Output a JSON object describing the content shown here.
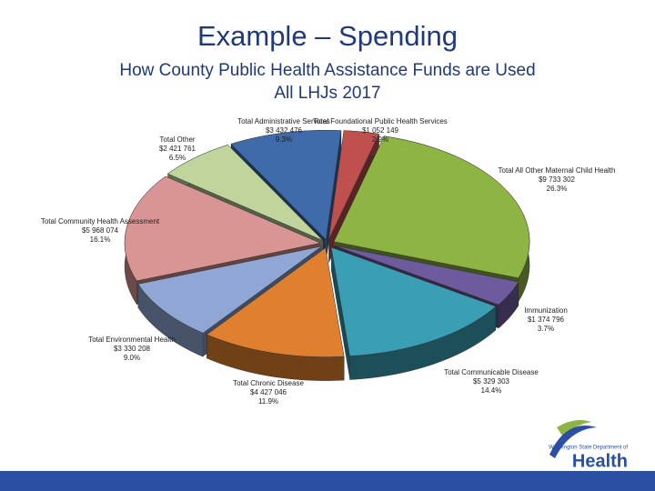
{
  "chart_data": {
    "type": "pie",
    "title": "Example – Spending",
    "subtitle": [
      "How County Public Health Assistance Funds are Used",
      "All LHJs 2017"
    ],
    "categories": [
      "Total Administrative Services",
      "Total Foundational Public Health Services",
      "Total All Other Maternal Child Health",
      "Immunization",
      "Total Communicable Disease",
      "Total Chronic Disease",
      "Total Environmental Health",
      "Total Community Health Assessment",
      "Total Other"
    ],
    "amount_labels": [
      "$3 432 476",
      "$1 052 149",
      "$9 733 302",
      "$1 374 796",
      "$5 329 303",
      "$4 427 046",
      "$3 330 208",
      "$5 968 074",
      "$2 421 761"
    ],
    "values": [
      9.3,
      2.9,
      26.3,
      3.7,
      14.4,
      11.9,
      9.0,
      16.1,
      6.5
    ],
    "value_labels": [
      "9.3%",
      "2.9%",
      "26.3%",
      "3.7%",
      "14.4%",
      "11.9%",
      "9.0%",
      "16.1%",
      "6.5%"
    ],
    "colors": [
      "#3f6bab",
      "#c0504d",
      "#8eb443",
      "#6e5b9d",
      "#3a9fb4",
      "#e0802f",
      "#90a6d4",
      "#d89593",
      "#c0d59c"
    ]
  },
  "logo": {
    "small": "Washington State Department of",
    "big": "Health"
  }
}
